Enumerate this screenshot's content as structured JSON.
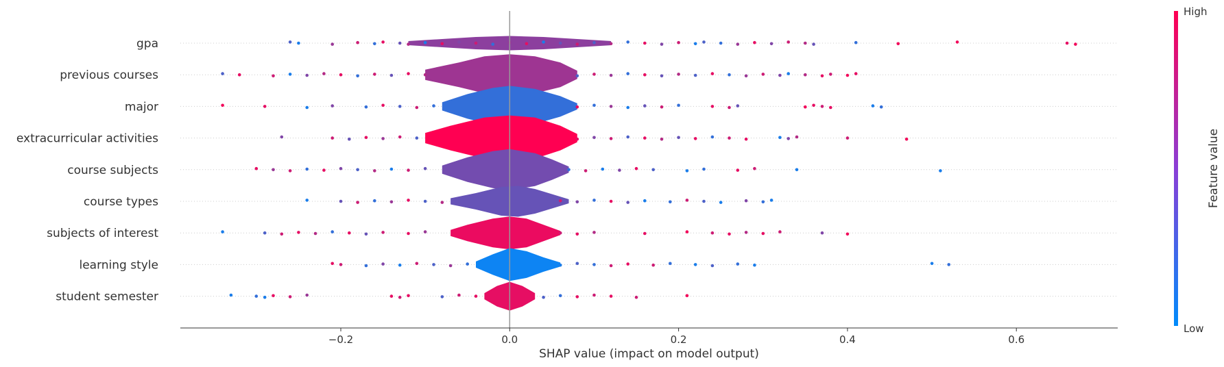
{
  "chart_data": {
    "type": "violin",
    "xlabel": "SHAP value (impact on model output)",
    "xlim": [
      -0.39,
      0.72
    ],
    "x_ticks": [
      -0.2,
      0.0,
      0.2,
      0.4,
      0.6
    ],
    "x_tick_labels": [
      "−0.2",
      "0.0",
      "0.2",
      "0.4",
      "0.6"
    ],
    "zero_line": 0.0,
    "grid": "dotted row lines",
    "colorbar": {
      "label": "Feature value",
      "high_label": "High",
      "low_label": "Low",
      "colors": [
        "#008bfb",
        "#ff0052"
      ],
      "placement": "right"
    },
    "features": [
      {
        "name": "gpa",
        "violin_color": 0.55,
        "shape": [
          [
            -0.12,
            0.002
          ],
          [
            -0.08,
            0.004
          ],
          [
            -0.04,
            0.006
          ],
          [
            0.0,
            0.007
          ],
          [
            0.04,
            0.006
          ],
          [
            0.08,
            0.004
          ],
          [
            0.12,
            0.002
          ]
        ],
        "points": [
          [
            -0.26,
            0.3
          ],
          [
            -0.25,
            0.1
          ],
          [
            -0.21,
            0.6
          ],
          [
            -0.18,
            0.8
          ],
          [
            -0.16,
            0.2
          ],
          [
            -0.15,
            0.9
          ],
          [
            -0.13,
            0.4
          ],
          [
            -0.12,
            0.7
          ],
          [
            -0.1,
            0.1
          ],
          [
            -0.08,
            0.9
          ],
          [
            -0.06,
            0.5
          ],
          [
            -0.04,
            0.8
          ],
          [
            -0.02,
            0.2
          ],
          [
            0.0,
            0.6
          ],
          [
            0.02,
            0.9
          ],
          [
            0.04,
            0.1
          ],
          [
            0.06,
            0.4
          ],
          [
            0.08,
            0.8
          ],
          [
            0.1,
            0.3
          ],
          [
            0.12,
            0.7
          ],
          [
            0.14,
            0.2
          ],
          [
            0.16,
            0.9
          ],
          [
            0.18,
            0.5
          ],
          [
            0.2,
            0.8
          ],
          [
            0.22,
            0.1
          ],
          [
            0.23,
            0.3
          ],
          [
            0.25,
            0.2
          ],
          [
            0.27,
            0.6
          ],
          [
            0.29,
            0.9
          ],
          [
            0.31,
            0.5
          ],
          [
            0.33,
            0.8
          ],
          [
            0.35,
            0.7
          ],
          [
            0.36,
            0.4
          ],
          [
            0.41,
            0.2
          ],
          [
            0.46,
            0.95
          ],
          [
            0.53,
            0.95
          ],
          [
            0.66,
            0.9
          ],
          [
            0.67,
            0.95
          ]
        ]
      },
      {
        "name": "previous courses",
        "violin_color": 0.62,
        "shape": [
          [
            -0.1,
            0.005
          ],
          [
            -0.06,
            0.012
          ],
          [
            -0.03,
            0.018
          ],
          [
            0.0,
            0.02
          ],
          [
            0.03,
            0.018
          ],
          [
            0.06,
            0.012
          ],
          [
            0.08,
            0.004
          ]
        ],
        "points": [
          [
            -0.34,
            0.3
          ],
          [
            -0.32,
            0.9
          ],
          [
            -0.28,
            0.8
          ],
          [
            -0.26,
            0.1
          ],
          [
            -0.24,
            0.5
          ],
          [
            -0.22,
            0.7
          ],
          [
            -0.2,
            0.9
          ],
          [
            -0.18,
            0.2
          ],
          [
            -0.16,
            0.8
          ],
          [
            -0.14,
            0.4
          ],
          [
            -0.12,
            0.9
          ],
          [
            -0.1,
            0.7
          ],
          [
            0.08,
            0.3
          ],
          [
            0.1,
            0.8
          ],
          [
            0.12,
            0.6
          ],
          [
            0.14,
            0.2
          ],
          [
            0.16,
            0.9
          ],
          [
            0.18,
            0.4
          ],
          [
            0.2,
            0.7
          ],
          [
            0.22,
            0.3
          ],
          [
            0.24,
            0.9
          ],
          [
            0.26,
            0.2
          ],
          [
            0.28,
            0.6
          ],
          [
            0.3,
            0.8
          ],
          [
            0.32,
            0.5
          ],
          [
            0.33,
            0.1
          ],
          [
            0.35,
            0.7
          ],
          [
            0.37,
            0.9
          ],
          [
            0.38,
            0.8
          ],
          [
            0.4,
            0.95
          ],
          [
            0.41,
            0.9
          ]
        ]
      },
      {
        "name": "major",
        "violin_color": 0.2,
        "shape": [
          [
            -0.08,
            0.004
          ],
          [
            -0.05,
            0.012
          ],
          [
            -0.02,
            0.018
          ],
          [
            0.0,
            0.02
          ],
          [
            0.03,
            0.017
          ],
          [
            0.06,
            0.01
          ],
          [
            0.08,
            0.003
          ]
        ],
        "points": [
          [
            -0.34,
            0.95
          ],
          [
            -0.29,
            0.9
          ],
          [
            -0.24,
            0.1
          ],
          [
            -0.21,
            0.5
          ],
          [
            -0.17,
            0.2
          ],
          [
            -0.15,
            0.9
          ],
          [
            -0.13,
            0.3
          ],
          [
            -0.11,
            0.8
          ],
          [
            -0.09,
            0.2
          ],
          [
            0.08,
            0.9
          ],
          [
            0.1,
            0.2
          ],
          [
            0.12,
            0.6
          ],
          [
            0.14,
            0.1
          ],
          [
            0.16,
            0.4
          ],
          [
            0.18,
            0.8
          ],
          [
            0.2,
            0.2
          ],
          [
            0.24,
            0.9
          ],
          [
            0.26,
            0.8
          ],
          [
            0.27,
            0.4
          ],
          [
            0.35,
            0.95
          ],
          [
            0.36,
            0.9
          ],
          [
            0.37,
            0.8
          ],
          [
            0.38,
            0.9
          ],
          [
            0.43,
            0.1
          ],
          [
            0.44,
            0.2
          ]
        ]
      },
      {
        "name": "extracurricular activities",
        "violin_color": 1.0,
        "shape": [
          [
            -0.1,
            0.005
          ],
          [
            -0.07,
            0.012
          ],
          [
            -0.03,
            0.02
          ],
          [
            0.0,
            0.022
          ],
          [
            0.03,
            0.02
          ],
          [
            0.06,
            0.012
          ],
          [
            0.08,
            0.004
          ]
        ],
        "points": [
          [
            -0.27,
            0.5
          ],
          [
            -0.21,
            0.8
          ],
          [
            -0.19,
            0.4
          ],
          [
            -0.17,
            0.9
          ],
          [
            -0.15,
            0.6
          ],
          [
            -0.13,
            0.8
          ],
          [
            -0.11,
            0.3
          ],
          [
            0.08,
            0.9
          ],
          [
            0.1,
            0.5
          ],
          [
            0.12,
            0.8
          ],
          [
            0.14,
            0.3
          ],
          [
            0.16,
            0.9
          ],
          [
            0.18,
            0.7
          ],
          [
            0.2,
            0.4
          ],
          [
            0.22,
            0.9
          ],
          [
            0.24,
            0.2
          ],
          [
            0.26,
            0.8
          ],
          [
            0.28,
            0.9
          ],
          [
            0.32,
            0.1
          ],
          [
            0.33,
            0.5
          ],
          [
            0.34,
            0.7
          ],
          [
            0.4,
            0.8
          ],
          [
            0.47,
            0.95
          ]
        ]
      },
      {
        "name": "course subjects",
        "violin_color": 0.45,
        "shape": [
          [
            -0.08,
            0.004
          ],
          [
            -0.05,
            0.012
          ],
          [
            -0.02,
            0.018
          ],
          [
            0.0,
            0.02
          ],
          [
            0.03,
            0.016
          ],
          [
            0.05,
            0.01
          ],
          [
            0.07,
            0.003
          ]
        ],
        "points": [
          [
            -0.3,
            0.9
          ],
          [
            -0.28,
            0.6
          ],
          [
            -0.26,
            0.8
          ],
          [
            -0.24,
            0.2
          ],
          [
            -0.22,
            0.9
          ],
          [
            -0.2,
            0.5
          ],
          [
            -0.18,
            0.3
          ],
          [
            -0.16,
            0.7
          ],
          [
            -0.14,
            0.1
          ],
          [
            -0.12,
            0.8
          ],
          [
            -0.1,
            0.4
          ],
          [
            0.07,
            0.2
          ],
          [
            0.09,
            0.8
          ],
          [
            0.11,
            0.1
          ],
          [
            0.13,
            0.5
          ],
          [
            0.15,
            0.9
          ],
          [
            0.17,
            0.3
          ],
          [
            0.21,
            0.1
          ],
          [
            0.23,
            0.2
          ],
          [
            0.27,
            0.9
          ],
          [
            0.29,
            0.8
          ],
          [
            0.34,
            0.1
          ],
          [
            0.51,
            0.1
          ]
        ]
      },
      {
        "name": "course types",
        "violin_color": 0.4,
        "shape": [
          [
            -0.07,
            0.003
          ],
          [
            -0.04,
            0.008
          ],
          [
            -0.01,
            0.014
          ],
          [
            0.01,
            0.015
          ],
          [
            0.03,
            0.012
          ],
          [
            0.05,
            0.007
          ],
          [
            0.07,
            0.002
          ]
        ],
        "points": [
          [
            -0.24,
            0.1
          ],
          [
            -0.2,
            0.4
          ],
          [
            -0.18,
            0.8
          ],
          [
            -0.16,
            0.2
          ],
          [
            -0.14,
            0.6
          ],
          [
            -0.12,
            0.9
          ],
          [
            -0.1,
            0.3
          ],
          [
            -0.08,
            0.7
          ],
          [
            0.06,
            0.8
          ],
          [
            0.08,
            0.5
          ],
          [
            0.1,
            0.2
          ],
          [
            0.12,
            0.9
          ],
          [
            0.14,
            0.4
          ],
          [
            0.16,
            0.1
          ],
          [
            0.19,
            0.2
          ],
          [
            0.21,
            0.8
          ],
          [
            0.23,
            0.3
          ],
          [
            0.25,
            0.1
          ],
          [
            0.28,
            0.5
          ],
          [
            0.3,
            0.2
          ],
          [
            0.31,
            0.1
          ]
        ]
      },
      {
        "name": "subjects of interest",
        "violin_color": 0.92,
        "shape": [
          [
            -0.07,
            0.003
          ],
          [
            -0.05,
            0.008
          ],
          [
            -0.02,
            0.014
          ],
          [
            0.0,
            0.016
          ],
          [
            0.02,
            0.014
          ],
          [
            0.04,
            0.008
          ],
          [
            0.06,
            0.002
          ]
        ],
        "points": [
          [
            -0.34,
            0.1
          ],
          [
            -0.29,
            0.3
          ],
          [
            -0.27,
            0.8
          ],
          [
            -0.25,
            0.9
          ],
          [
            -0.23,
            0.7
          ],
          [
            -0.21,
            0.2
          ],
          [
            -0.19,
            0.9
          ],
          [
            -0.17,
            0.4
          ],
          [
            -0.15,
            0.8
          ],
          [
            -0.12,
            0.9
          ],
          [
            -0.1,
            0.6
          ],
          [
            0.06,
            0.8
          ],
          [
            0.08,
            0.9
          ],
          [
            0.1,
            0.7
          ],
          [
            0.16,
            0.9
          ],
          [
            0.21,
            0.95
          ],
          [
            0.24,
            0.8
          ],
          [
            0.26,
            0.9
          ],
          [
            0.28,
            0.7
          ],
          [
            0.3,
            0.9
          ],
          [
            0.32,
            0.8
          ],
          [
            0.37,
            0.5
          ],
          [
            0.4,
            0.95
          ]
        ]
      },
      {
        "name": "learning style",
        "violin_color": 0.05,
        "shape": [
          [
            -0.04,
            0.003
          ],
          [
            -0.02,
            0.01
          ],
          [
            0.0,
            0.016
          ],
          [
            0.02,
            0.013
          ],
          [
            0.04,
            0.007
          ],
          [
            0.06,
            0.002
          ]
        ],
        "points": [
          [
            -0.21,
            0.9
          ],
          [
            -0.2,
            0.8
          ],
          [
            -0.17,
            0.2
          ],
          [
            -0.15,
            0.5
          ],
          [
            -0.13,
            0.1
          ],
          [
            -0.11,
            0.8
          ],
          [
            -0.09,
            0.3
          ],
          [
            -0.07,
            0.6
          ],
          [
            -0.05,
            0.2
          ],
          [
            0.06,
            0.1
          ],
          [
            0.08,
            0.3
          ],
          [
            0.1,
            0.2
          ],
          [
            0.12,
            0.8
          ],
          [
            0.14,
            0.9
          ],
          [
            0.17,
            0.8
          ],
          [
            0.19,
            0.2
          ],
          [
            0.22,
            0.1
          ],
          [
            0.24,
            0.3
          ],
          [
            0.27,
            0.2
          ],
          [
            0.29,
            0.1
          ],
          [
            0.5,
            0.1
          ],
          [
            0.52,
            0.2
          ]
        ]
      },
      {
        "name": "student semester",
        "violin_color": 0.9,
        "shape": [
          [
            -0.03,
            0.003
          ],
          [
            -0.015,
            0.01
          ],
          [
            0.0,
            0.014
          ],
          [
            0.015,
            0.01
          ],
          [
            0.03,
            0.003
          ]
        ],
        "points": [
          [
            -0.33,
            0.1
          ],
          [
            -0.3,
            0.2
          ],
          [
            -0.29,
            0.1
          ],
          [
            -0.28,
            0.9
          ],
          [
            -0.26,
            0.8
          ],
          [
            -0.24,
            0.6
          ],
          [
            -0.14,
            0.9
          ],
          [
            -0.13,
            0.8
          ],
          [
            -0.12,
            0.9
          ],
          [
            -0.08,
            0.3
          ],
          [
            -0.06,
            0.8
          ],
          [
            -0.04,
            0.9
          ],
          [
            0.04,
            0.3
          ],
          [
            0.06,
            0.2
          ],
          [
            0.08,
            0.9
          ],
          [
            0.1,
            0.8
          ],
          [
            0.12,
            0.9
          ],
          [
            0.15,
            0.8
          ],
          [
            0.21,
            0.95
          ]
        ]
      }
    ]
  }
}
